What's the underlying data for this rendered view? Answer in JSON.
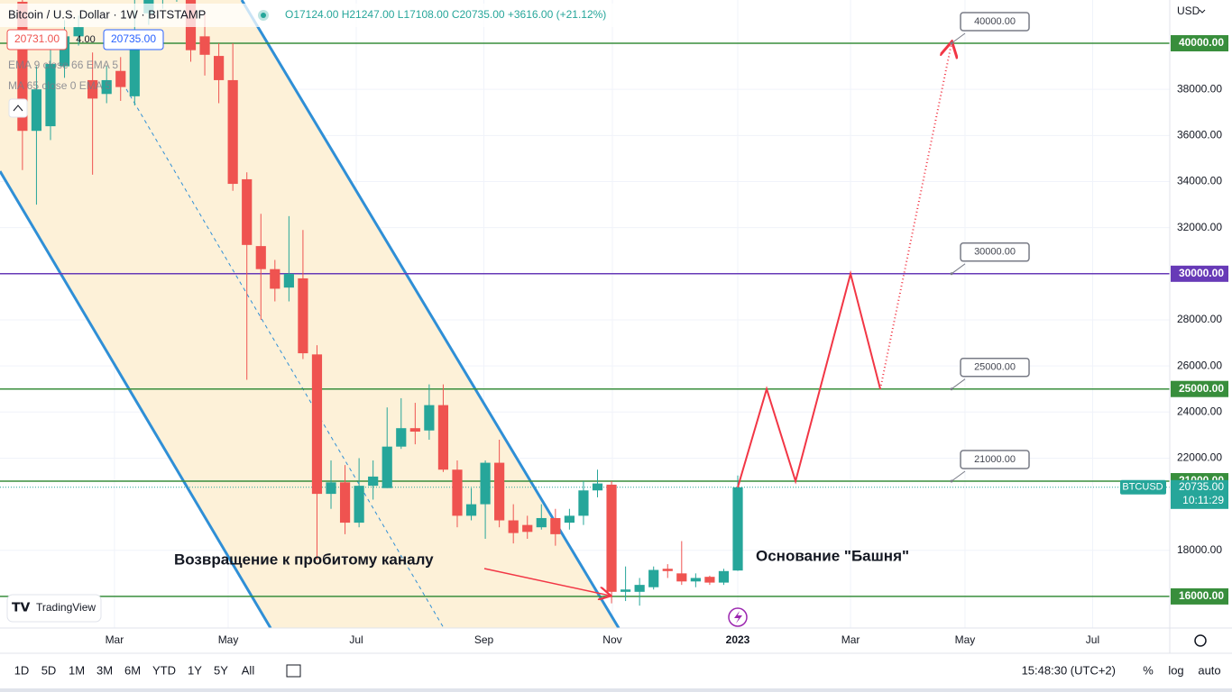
{
  "chart_data": {
    "type": "candlestick",
    "title": "Bitcoin / U.S. Dollar · 1W · BITSTAMP",
    "ohlc_text": "O17124.00 H21247.00 L17108.00 C20735.00 +3616.00 (+21.12%)",
    "bid": "20731.00",
    "spread": "4.00",
    "ask": "20735.00",
    "indicators": [
      "EMA 9 close 66 EMA 5",
      "MA 65 close 0 EMA 5"
    ],
    "currency": "USD",
    "up_color": "#26a69a",
    "down_color": "#ef5350",
    "x": [
      0,
      1,
      2,
      3,
      4,
      5,
      6,
      7,
      8,
      9,
      10,
      11,
      12,
      13,
      14,
      15,
      16,
      17,
      18,
      19,
      20,
      21,
      22,
      23,
      24,
      25,
      26,
      27,
      28,
      29,
      30,
      31,
      32,
      33,
      34,
      35,
      36,
      37,
      38,
      39,
      40,
      41,
      42,
      43,
      44,
      45,
      46,
      47,
      48,
      49,
      50,
      51
    ],
    "open": [
      41800,
      36200,
      36400,
      39000,
      40300,
      38400,
      37800,
      38800,
      37700,
      41300,
      41900,
      42300,
      44000,
      40300,
      39450,
      38400,
      34100,
      31200,
      30200,
      29400,
      29800,
      26500,
      20450,
      20950,
      19200,
      20800,
      20700,
      22500,
      23300,
      23200,
      24300,
      21500,
      19500,
      20000,
      21800,
      19300,
      19100,
      19000,
      19400,
      19200,
      19500,
      20600,
      20850,
      16200,
      16200,
      16400,
      17200,
      17000,
      16650,
      16850,
      16600,
      17124
    ],
    "high": [
      42500,
      39000,
      40500,
      41000,
      41200,
      39600,
      39000,
      39400,
      42000,
      42500,
      42800,
      44500,
      44500,
      41400,
      40000,
      40000,
      34400,
      32600,
      30600,
      32500,
      31900,
      26900,
      21900,
      21700,
      22000,
      21900,
      24200,
      24600,
      24400,
      25200,
      25200,
      21900,
      20700,
      21900,
      22800,
      20000,
      19500,
      20000,
      19800,
      19800,
      21000,
      21500,
      21000,
      17300,
      16800,
      17300,
      17400,
      18400,
      17000,
      16900,
      17200,
      21247
    ],
    "low": [
      34500,
      33000,
      35800,
      38500,
      39900,
      34300,
      37400,
      37500,
      37300,
      40800,
      41500,
      41800,
      39200,
      38600,
      37400,
      33600,
      25400,
      28000,
      28800,
      28800,
      26300,
      17600,
      19800,
      18700,
      19000,
      20200,
      20700,
      22400,
      22600,
      22800,
      21400,
      19000,
      19300,
      18500,
      19000,
      18300,
      18500,
      18900,
      18200,
      18900,
      19100,
      20300,
      15700,
      15800,
      15600,
      16300,
      16800,
      16500,
      16400,
      16500,
      16500,
      17108
    ],
    "close": [
      36200,
      38000,
      39100,
      40300,
      40700,
      37600,
      38400,
      38100,
      40300,
      42000,
      42300,
      44000,
      39700,
      39500,
      38400,
      33900,
      31250,
      30200,
      29350,
      30000,
      26550,
      20450,
      20950,
      19200,
      20800,
      21200,
      22500,
      23300,
      23150,
      24300,
      21500,
      19500,
      20000,
      21800,
      19300,
      18750,
      18800,
      19400,
      18700,
      19500,
      20600,
      20900,
      16200,
      16300,
      16500,
      17150,
      17100,
      16650,
      16800,
      16600,
      17100,
      20735
    ],
    "xlim": [
      -1.6,
      81.8
    ],
    "xticks": [
      {
        "value": 6.56,
        "label": "Mar"
      },
      {
        "value": 14.67,
        "label": "May"
      },
      {
        "value": 23.8,
        "label": "Jul"
      },
      {
        "value": 32.9,
        "label": "Sep"
      },
      {
        "value": 42.06,
        "label": "Nov"
      },
      {
        "value": 51,
        "label": "2023"
      },
      {
        "value": 59.04,
        "label": "Mar"
      },
      {
        "value": 67.2,
        "label": "May"
      },
      {
        "value": 76.3,
        "label": "Jul"
      }
    ],
    "ylim": [
      14629,
      41877
    ],
    "yticks": [
      {
        "value": 18000,
        "label": "18000.00"
      },
      {
        "value": 22000,
        "label": "22000.00"
      },
      {
        "value": 24000,
        "label": "24000.00"
      },
      {
        "value": 26000,
        "label": "26000.00"
      },
      {
        "value": 28000,
        "label": "28000.00"
      },
      {
        "value": 32000,
        "label": "32000.00"
      },
      {
        "value": 34000,
        "label": "34000.00"
      },
      {
        "value": 36000,
        "label": "36000.00"
      },
      {
        "value": 38000,
        "label": "38000.00"
      }
    ],
    "grid": true,
    "price_lines": {
      "values": [
        40000,
        30000,
        25000,
        21000,
        16000
      ],
      "value_labels": [
        "40000.00",
        "30000.00",
        "25000.00",
        "21000.00",
        "16000.00"
      ],
      "colors": [
        "#388e3c",
        "#673ab7",
        "#388e3c",
        "#388e3c",
        "#388e3c"
      ]
    },
    "callouts": {
      "values": [
        40000,
        30000,
        25000,
        21000
      ],
      "value_labels": [
        "40000.00",
        "30000.00",
        "25000.00",
        "21000.00"
      ]
    },
    "last_price": {
      "value": 20735,
      "label": "20735.00",
      "symbol": "BTCUSD",
      "countdown": "10:11:29"
    },
    "projection": {
      "color": "#f23645",
      "x": [
        51,
        53.06,
        55.12,
        59.04,
        61.16
      ],
      "y": [
        20735,
        25000,
        21000,
        30000,
        25000
      ]
    },
    "projection_dotted": {
      "x": [
        61.16,
        66.24
      ],
      "y": [
        25000,
        40000
      ]
    },
    "annotations": [
      "Возвращение к пробитому каналу",
      "Основание \"Башня\""
    ]
  },
  "toolbar": {
    "ranges": [
      "1D",
      "5D",
      "1M",
      "3M",
      "6M",
      "YTD",
      "1Y",
      "5Y",
      "All"
    ],
    "time": "15:48:30 (UTC+2)",
    "percent": "%",
    "log": "log",
    "auto": "auto"
  },
  "logo": "TradingView"
}
